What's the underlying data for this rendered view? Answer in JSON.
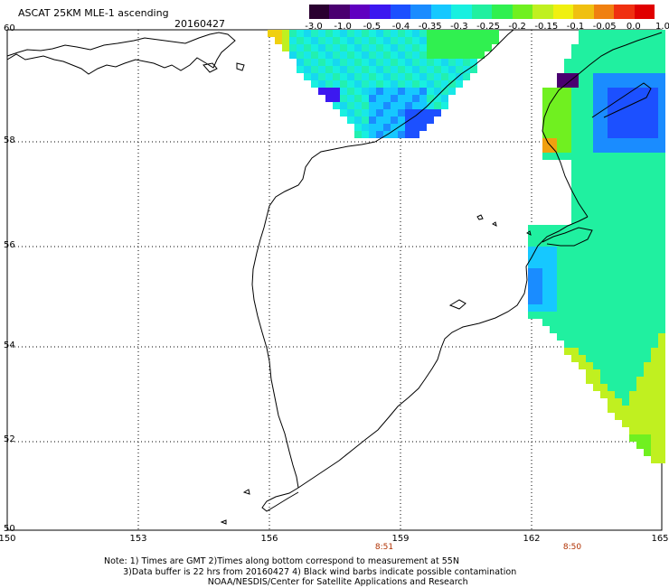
{
  "header": {
    "title": "ASCAT 25KM MLE-1 ascending",
    "date": "20160427"
  },
  "colorbar": {
    "labels": [
      "-3.0",
      "-1.0",
      "-0.5",
      "-0.4",
      "-0.35",
      "-0.3",
      "-0.25",
      "-0.2",
      "-0.15",
      "-0.1",
      "-0.05",
      "0.0",
      "1.0"
    ],
    "colors": [
      "#2a0030",
      "#4a0070",
      "#6000c0",
      "#3c18f0",
      "#1c50ff",
      "#1a8cff",
      "#16c8ff",
      "#18f0e0",
      "#20f0a0",
      "#30f050",
      "#70f020",
      "#c0f020",
      "#f0f010",
      "#f0c010",
      "#f08010",
      "#f03010",
      "#e00000"
    ]
  },
  "axes": {
    "x_ticks": [
      "150",
      "153",
      "156",
      "159",
      "162",
      "165"
    ],
    "y_ticks": [
      "60",
      "58",
      "56",
      "54",
      "52",
      "50"
    ]
  },
  "times": [
    "8:51",
    "8:50"
  ],
  "notes": {
    "line1": "Note: 1) Times are GMT 2)Times along bottom correspond to measurement at 55N",
    "line2": "3)Data buffer is 22 hrs from 20160427 4) Black wind barbs indicate possible contamination",
    "line3": "NOAA/NESDIS/Center for Satellite Applications and Research"
  }
}
